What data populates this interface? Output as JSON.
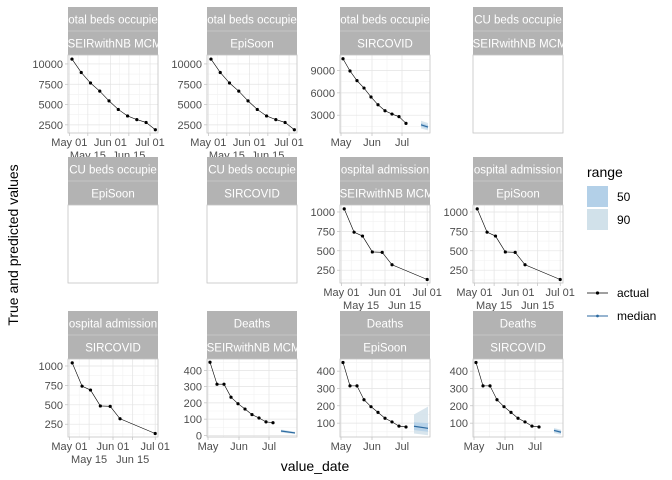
{
  "chart_data": {
    "type": "line",
    "xlabel": "value_date",
    "ylabel": "True and predicted values",
    "legend": {
      "placement": "right",
      "range_title": "range",
      "range_entries": [
        {
          "label": "50",
          "color": "#b3d0e8"
        },
        {
          "label": "90",
          "color": "#d1e1ea"
        }
      ],
      "line_entries": [
        {
          "label": "actual",
          "color": "#000000"
        },
        {
          "label": "median",
          "color": "#2c6aa0"
        }
      ]
    },
    "colors": {
      "strip": "#b3b3b3",
      "actual": "#000000",
      "median": "#2c6aa0",
      "band50": "#b3d0e8",
      "band90": "#d1e1ea"
    },
    "grid": true,
    "panels": [
      {
        "row": 1,
        "col": 1,
        "strip": [
          "otal beds occupie",
          "tSEIRwithNB MCM"
        ],
        "xlim": [
          "04-30",
          "07-07"
        ],
        "xticks": [
          "05-01",
          "05-15",
          "06-01",
          "06-15",
          "07-01"
        ],
        "xtick_labels": [
          "May 01",
          "May 15",
          "Jun 01",
          "Jun 15",
          "Jul 01"
        ],
        "ylim": [
          1500,
          11100
        ],
        "yticks": [
          2500,
          5000,
          7500,
          10000
        ],
        "actual": [
          [
            "05-03",
            10600
          ],
          [
            "05-10",
            8950
          ],
          [
            "05-17",
            7650
          ],
          [
            "05-24",
            6650
          ],
          [
            "05-31",
            5450
          ],
          [
            "06-07",
            4400
          ],
          [
            "06-14",
            3600
          ],
          [
            "06-21",
            3150
          ],
          [
            "06-28",
            2800
          ],
          [
            "07-05",
            1900
          ]
        ],
        "forecast": []
      },
      {
        "row": 1,
        "col": 2,
        "strip": [
          "otal beds occupie",
          "EpiSoon"
        ],
        "xlim": [
          "04-30",
          "07-07"
        ],
        "xticks": [
          "05-01",
          "05-15",
          "06-01",
          "06-15",
          "07-01"
        ],
        "xtick_labels": [
          "May 01",
          "May 15",
          "Jun 01",
          "Jun 15",
          "Jul 01"
        ],
        "ylim": [
          1500,
          11100
        ],
        "yticks": [
          2500,
          5000,
          7500,
          10000
        ],
        "actual": [
          [
            "05-03",
            10600
          ],
          [
            "05-10",
            8950
          ],
          [
            "05-17",
            7650
          ],
          [
            "05-24",
            6650
          ],
          [
            "05-31",
            5450
          ],
          [
            "06-07",
            4400
          ],
          [
            "06-14",
            3600
          ],
          [
            "06-21",
            3150
          ],
          [
            "06-28",
            2800
          ],
          [
            "07-05",
            1900
          ]
        ],
        "forecast": []
      },
      {
        "row": 1,
        "col": 3,
        "strip": [
          "otal beds occupie",
          "SIRCOVID"
        ],
        "xlim": [
          "04-30",
          "07-29"
        ],
        "xticks": [
          "05-01",
          "06-01",
          "07-01"
        ],
        "xtick_labels": [
          "May",
          "Jun",
          "Jul"
        ],
        "ylim": [
          600,
          11100
        ],
        "yticks": [
          3000,
          6000,
          9000
        ],
        "actual": [
          [
            "05-03",
            10600
          ],
          [
            "05-10",
            8950
          ],
          [
            "05-17",
            7650
          ],
          [
            "05-24",
            6650
          ],
          [
            "05-31",
            5450
          ],
          [
            "06-07",
            4400
          ],
          [
            "06-14",
            3600
          ],
          [
            "06-21",
            3150
          ],
          [
            "06-28",
            2800
          ],
          [
            "07-05",
            1900
          ]
        ],
        "forecast": [
          {
            "date": "07-20",
            "median": 1700,
            "lo50": 1450,
            "hi50": 1950,
            "lo90": 1200,
            "hi90": 2250
          },
          {
            "date": "07-27",
            "median": 1400,
            "lo50": 1150,
            "hi50": 1650,
            "lo90": 950,
            "hi90": 1950
          }
        ]
      },
      {
        "row": 1,
        "col": 4,
        "strip": [
          "CU beds occupie",
          "tSEIRwithNB MCM"
        ],
        "empty": true
      },
      {
        "row": 2,
        "col": 1,
        "strip": [
          "CU beds occupie",
          "EpiSoon"
        ],
        "empty": true
      },
      {
        "row": 2,
        "col": 2,
        "strip": [
          "CU beds occupie",
          "SIRCOVID"
        ],
        "empty": true
      },
      {
        "row": 2,
        "col": 3,
        "strip": [
          "ospital admission",
          "tSEIRwithNB MCM"
        ],
        "xlim": [
          "04-30",
          "07-03"
        ],
        "xticks": [
          "05-01",
          "05-15",
          "06-01",
          "06-15",
          "07-01"
        ],
        "xtick_labels": [
          "May 01",
          "May 15",
          "Jun 01",
          "Jun 15",
          "Jul 01"
        ],
        "ylim": [
          85,
          1090
        ],
        "yticks": [
          250,
          500,
          750,
          1000
        ],
        "actual": [
          [
            "05-03",
            1040
          ],
          [
            "05-10",
            740
          ],
          [
            "05-16",
            690
          ],
          [
            "05-23",
            485
          ],
          [
            "05-30",
            480
          ],
          [
            "06-06",
            320
          ],
          [
            "07-01",
            130
          ]
        ],
        "forecast": []
      },
      {
        "row": 2,
        "col": 4,
        "strip": [
          "ospital admission",
          "EpiSoon"
        ],
        "xlim": [
          "04-30",
          "07-03"
        ],
        "xticks": [
          "05-01",
          "05-15",
          "06-01",
          "06-15",
          "07-01"
        ],
        "xtick_labels": [
          "May 01",
          "May 15",
          "Jun 01",
          "Jun 15",
          "Jul 01"
        ],
        "ylim": [
          85,
          1090
        ],
        "yticks": [
          250,
          500,
          750,
          1000
        ],
        "actual": [
          [
            "05-03",
            1040
          ],
          [
            "05-10",
            740
          ],
          [
            "05-16",
            690
          ],
          [
            "05-23",
            485
          ],
          [
            "05-30",
            480
          ],
          [
            "06-06",
            320
          ],
          [
            "07-01",
            130
          ]
        ],
        "forecast": []
      },
      {
        "row": 3,
        "col": 1,
        "strip": [
          "ospital admission",
          "SIRCOVID"
        ],
        "xlim": [
          "04-30",
          "07-03"
        ],
        "xticks": [
          "05-01",
          "05-15",
          "06-01",
          "06-15",
          "07-01"
        ],
        "xtick_labels": [
          "May 01",
          "May 15",
          "Jun 01",
          "Jun 15",
          "Jul 01"
        ],
        "ylim": [
          85,
          1090
        ],
        "yticks": [
          250,
          500,
          750,
          1000
        ],
        "actual": [
          [
            "05-03",
            1040
          ],
          [
            "05-10",
            740
          ],
          [
            "05-16",
            690
          ],
          [
            "05-23",
            485
          ],
          [
            "05-30",
            480
          ],
          [
            "06-06",
            320
          ],
          [
            "07-01",
            130
          ]
        ],
        "forecast": []
      },
      {
        "row": 3,
        "col": 2,
        "strip": [
          "Deaths",
          "tSEIRwithNB MCM"
        ],
        "xlim": [
          "04-30",
          "07-29"
        ],
        "xticks": [
          "05-01",
          "06-01",
          "07-01"
        ],
        "xtick_labels": [
          "May",
          "Jun",
          "Jul"
        ],
        "ylim": [
          -10,
          470
        ],
        "yticks": [
          0,
          100,
          200,
          300,
          400
        ],
        "actual": [
          [
            "05-03",
            450
          ],
          [
            "05-10",
            315
          ],
          [
            "05-17",
            315
          ],
          [
            "05-24",
            235
          ],
          [
            "05-31",
            195
          ],
          [
            "06-07",
            162
          ],
          [
            "06-14",
            128
          ],
          [
            "06-21",
            107
          ],
          [
            "06-28",
            83
          ],
          [
            "07-05",
            78
          ]
        ],
        "forecast": [
          {
            "date": "07-13",
            "median": 27,
            "lo50": 22,
            "hi50": 32,
            "lo90": 18,
            "hi90": 36
          },
          {
            "date": "07-27",
            "median": 15,
            "lo50": 11,
            "hi50": 19,
            "lo90": 8,
            "hi90": 22
          }
        ]
      },
      {
        "row": 3,
        "col": 3,
        "strip": [
          "Deaths",
          "EpiSoon"
        ],
        "xlim": [
          "04-30",
          "07-29"
        ],
        "xticks": [
          "05-01",
          "06-01",
          "07-01"
        ],
        "xtick_labels": [
          "May",
          "Jun",
          "Jul"
        ],
        "ylim": [
          20,
          470
        ],
        "yticks": [
          100,
          200,
          300,
          400
        ],
        "actual": [
          [
            "05-03",
            450
          ],
          [
            "05-10",
            315
          ],
          [
            "05-17",
            315
          ],
          [
            "05-24",
            235
          ],
          [
            "05-31",
            195
          ],
          [
            "06-07",
            162
          ],
          [
            "06-14",
            128
          ],
          [
            "06-21",
            107
          ],
          [
            "06-28",
            83
          ],
          [
            "07-05",
            78
          ]
        ],
        "forecast": [
          {
            "date": "07-13",
            "median": 82,
            "lo50": 60,
            "hi50": 105,
            "lo90": 40,
            "hi90": 150
          },
          {
            "date": "07-27",
            "median": 70,
            "lo50": 50,
            "hi50": 100,
            "lo90": 30,
            "hi90": 195
          }
        ]
      },
      {
        "row": 3,
        "col": 4,
        "strip": [
          "Deaths",
          "SIRCOVID"
        ],
        "xlim": [
          "04-30",
          "07-29"
        ],
        "xticks": [
          "05-01",
          "06-01",
          "07-01"
        ],
        "xtick_labels": [
          "May",
          "Jun",
          "Jul"
        ],
        "ylim": [
          20,
          470
        ],
        "yticks": [
          100,
          200,
          300,
          400
        ],
        "actual": [
          [
            "05-03",
            450
          ],
          [
            "05-10",
            315
          ],
          [
            "05-17",
            315
          ],
          [
            "05-24",
            235
          ],
          [
            "05-31",
            195
          ],
          [
            "06-07",
            162
          ],
          [
            "06-14",
            128
          ],
          [
            "06-21",
            107
          ],
          [
            "06-28",
            83
          ],
          [
            "07-05",
            78
          ]
        ],
        "forecast": [
          {
            "date": "07-20",
            "median": 58,
            "lo50": 50,
            "hi50": 66,
            "lo90": 42,
            "hi90": 72
          },
          {
            "date": "07-27",
            "median": 48,
            "lo50": 40,
            "hi50": 56,
            "lo90": 33,
            "hi90": 62
          }
        ]
      }
    ]
  }
}
